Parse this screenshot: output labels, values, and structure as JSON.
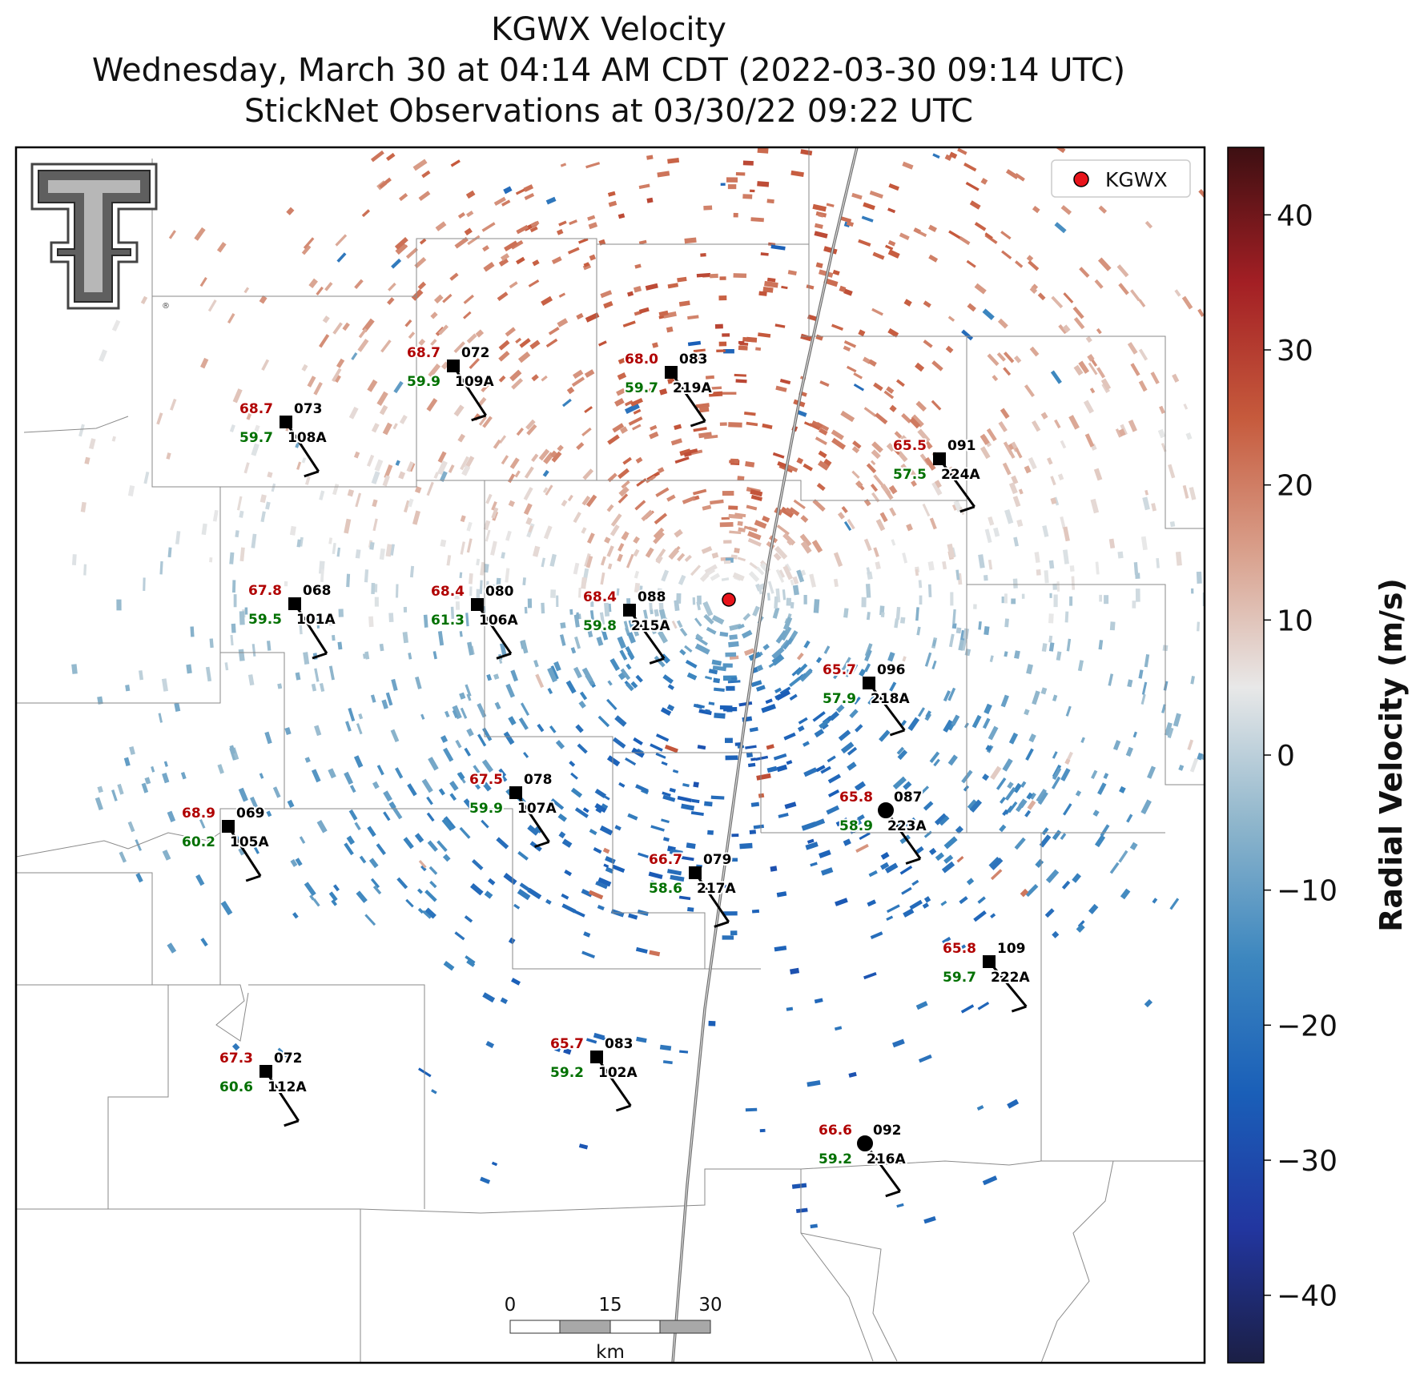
{
  "title": {
    "line1": "KGWX Velocity",
    "line2": "Wednesday, March 30 at 04:14 AM CDT (2022-03-30 09:14 UTC)",
    "line3": "StickNet Observations at 03/30/22 09:22 UTC"
  },
  "legend": {
    "label": "KGWX"
  },
  "colorbar": {
    "title": "Radial Velocity (m/s)",
    "min": -45,
    "max": 45,
    "ticks": [
      40,
      30,
      20,
      10,
      0,
      -10,
      -20,
      -30,
      -40
    ],
    "tick_labels": [
      "40",
      "30",
      "20",
      "10",
      "0",
      "−10",
      "−20",
      "−30",
      "−40"
    ],
    "colors": [
      "#1b1f45",
      "#2236a0",
      "#1a5fb8",
      "#3d87bf",
      "#8fb6cc",
      "#e8e8e8",
      "#d9a08c",
      "#c65a3c",
      "#a31f24",
      "#3d0f12"
    ]
  },
  "scale_bar": {
    "labels": [
      "0",
      "15",
      "30"
    ],
    "unit": "km"
  },
  "logo": {
    "name": "Texas Tech Double T"
  },
  "radar": {
    "id": "KGWX",
    "marker_color": "#e8141b"
  },
  "stations": [
    {
      "id": "109A",
      "temp": "68.7",
      "dew": "59.9",
      "dir": "072",
      "symbol": "square"
    },
    {
      "id": "219A",
      "temp": "68.0",
      "dew": "59.7",
      "dir": "083",
      "symbol": "square"
    },
    {
      "id": "108A",
      "temp": "68.7",
      "dew": "59.7",
      "dir": "073",
      "symbol": "square"
    },
    {
      "id": "224A",
      "temp": "65.5",
      "dew": "57.5",
      "dir": "091",
      "symbol": "square"
    },
    {
      "id": "101A",
      "temp": "67.8",
      "dew": "59.5",
      "dir": "068",
      "symbol": "square"
    },
    {
      "id": "106A",
      "temp": "68.4",
      "dew": "61.3",
      "dir": "080",
      "symbol": "square"
    },
    {
      "id": "215A",
      "temp": "68.4",
      "dew": "59.8",
      "dir": "088",
      "symbol": "square"
    },
    {
      "id": "218A",
      "temp": "65.7",
      "dew": "57.9",
      "dir": "096",
      "symbol": "square"
    },
    {
      "id": "107A",
      "temp": "67.5",
      "dew": "59.9",
      "dir": "078",
      "symbol": "square"
    },
    {
      "id": "223A",
      "temp": "65.8",
      "dew": "58.9",
      "dir": "087",
      "symbol": "circle"
    },
    {
      "id": "105A",
      "temp": "68.9",
      "dew": "60.2",
      "dir": "069",
      "symbol": "square"
    },
    {
      "id": "217A",
      "temp": "66.7",
      "dew": "58.6",
      "dir": "079",
      "symbol": "square"
    },
    {
      "id": "222A",
      "temp": "65.8",
      "dew": "59.7",
      "dir": "109",
      "symbol": "square"
    },
    {
      "id": "112A",
      "temp": "67.3",
      "dew": "60.6",
      "dir": "072",
      "symbol": "square"
    },
    {
      "id": "102A",
      "temp": "65.7",
      "dew": "59.2",
      "dir": "083",
      "symbol": "square"
    },
    {
      "id": "216A",
      "temp": "66.6",
      "dew": "59.2",
      "dir": "092",
      "symbol": "circle"
    }
  ]
}
